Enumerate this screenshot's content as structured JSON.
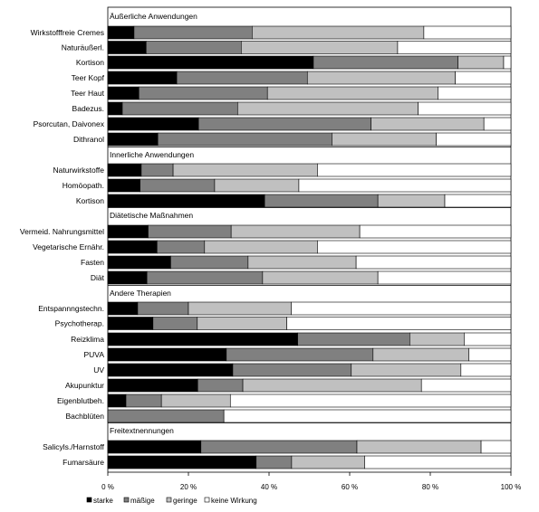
{
  "chart_data": {
    "type": "bar",
    "orientation": "horizontal",
    "stacked": true,
    "percent_stacked": true,
    "xlim": [
      0,
      100
    ],
    "x_ticks": [
      "0 %",
      "20 %",
      "40 %",
      "60 %",
      "80 %",
      "100 %"
    ],
    "legend_position": "bottom-left",
    "series": [
      {
        "name": "starke",
        "color": "#000000"
      },
      {
        "name": "mäßige",
        "color": "#808080"
      },
      {
        "name": "geringe",
        "color": "#c0c0c0"
      },
      {
        "name": "keine Wirkung",
        "color": "#ffffff"
      }
    ],
    "groups": [
      {
        "label": "Äußerliche Anwendungen",
        "rows": [
          {
            "label": "Wirkstofffreie Cremes",
            "values": [
              6.5,
              29.3,
              42.6,
              21.6
            ]
          },
          {
            "label": "Naturäußerl.",
            "values": [
              9.5,
              23.6,
              38.8,
              28.1
            ]
          },
          {
            "label": "Kortison",
            "values": [
              51.0,
              35.9,
              11.3,
              1.8
            ]
          },
          {
            "label": "Teer Kopf",
            "values": [
              17.1,
              32.4,
              36.7,
              13.8
            ]
          },
          {
            "label": "Teer Haut",
            "values": [
              7.7,
              31.9,
              42.3,
              18.1
            ]
          },
          {
            "label": "Badezus.",
            "values": [
              3.6,
              28.6,
              44.8,
              23.0
            ]
          },
          {
            "label": "Psorcutan, Daivonex",
            "values": [
              22.5,
              42.8,
              28.0,
              6.7
            ]
          },
          {
            "label": "Dithranol",
            "values": [
              12.4,
              43.2,
              25.9,
              18.5
            ]
          }
        ]
      },
      {
        "label": "Innerliche Anwendungen",
        "rows": [
          {
            "label": "Naturwirkstoffe",
            "values": [
              8.3,
              7.9,
              35.8,
              48.0
            ]
          },
          {
            "label": "Homöopath.",
            "values": [
              8.0,
              18.5,
              20.9,
              52.6
            ]
          },
          {
            "label": "Kortison",
            "values": [
              38.9,
              28.1,
              16.6,
              16.4
            ]
          }
        ]
      },
      {
        "label": "Diätetische Maßnahmen",
        "rows": [
          {
            "label": "Vermeid. Nahrungsmittel",
            "values": [
              10.0,
              20.6,
              31.9,
              37.5
            ]
          },
          {
            "label": "Vegetarische Ernähr.",
            "values": [
              12.2,
              11.8,
              28.0,
              48.0
            ]
          },
          {
            "label": "Fasten",
            "values": [
              15.6,
              19.2,
              26.8,
              38.4
            ]
          },
          {
            "label": "Diät",
            "values": [
              9.7,
              28.7,
              28.6,
              33.0
            ]
          }
        ]
      },
      {
        "label": "Andere Therapien",
        "rows": [
          {
            "label": "Entspannngstechn.",
            "values": [
              7.4,
              12.6,
              25.5,
              54.5
            ]
          },
          {
            "label": "Psychotherap.",
            "values": [
              11.2,
              11.0,
              22.2,
              55.6
            ]
          },
          {
            "label": "Reizklima",
            "values": [
              47.1,
              27.8,
              13.5,
              11.6
            ]
          },
          {
            "label": "PUVA",
            "values": [
              29.4,
              36.4,
              23.8,
              10.4
            ]
          },
          {
            "label": "UV",
            "values": [
              31.0,
              29.4,
              27.2,
              12.4
            ]
          },
          {
            "label": "Akupunktur",
            "values": [
              22.3,
              11.2,
              44.3,
              22.2
            ]
          },
          {
            "label": "Eigenblutbeh.",
            "values": [
              4.5,
              8.8,
              17.1,
              69.6
            ]
          },
          {
            "label": "Bachblüten",
            "values": [
              0.0,
              28.8,
              0.0,
              71.2
            ]
          }
        ]
      },
      {
        "label": "Freitextnennungen",
        "rows": [
          {
            "label": "Salicyls./Harnstoff",
            "values": [
              23.1,
              38.7,
              30.8,
              7.4
            ]
          },
          {
            "label": "Fumarsäure",
            "values": [
              36.8,
              8.8,
              18.1,
              36.3
            ]
          }
        ]
      }
    ]
  }
}
